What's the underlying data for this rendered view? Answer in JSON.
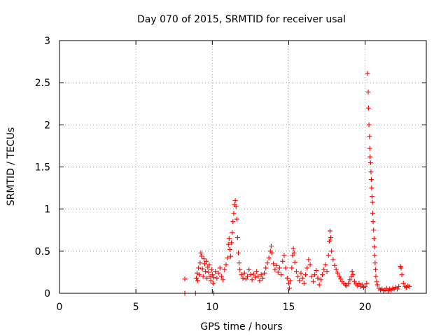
{
  "chart_data": {
    "type": "scatter",
    "title": "Day 070 of 2015, SRMTID for receiver usal",
    "xlabel": "GPS time / hours",
    "ylabel": "SRMTID / TECUs",
    "xlim": [
      0,
      24
    ],
    "ylim": [
      0,
      3
    ],
    "xticks": [
      0,
      5,
      10,
      15,
      20
    ],
    "xtick_labels": [
      "0",
      "5",
      "10",
      "15",
      "20"
    ],
    "yticks": [
      0,
      0.5,
      1,
      1.5,
      2,
      2.5,
      3
    ],
    "ytick_labels": [
      "0",
      "0.5",
      "1",
      "1.5",
      "2",
      "2.5",
      "3"
    ],
    "grid": true,
    "marker": "+",
    "color": "#ff0000",
    "series": [
      {
        "name": "SRMTID",
        "points": [
          [
            8.2,
            0.17
          ],
          [
            8.2,
            0.0
          ],
          [
            8.9,
            0.0
          ],
          [
            10.1,
            0.0
          ],
          [
            8.95,
            0.18
          ],
          [
            9.0,
            0.24
          ],
          [
            9.05,
            0.15
          ],
          [
            9.1,
            0.3
          ],
          [
            9.15,
            0.22
          ],
          [
            9.2,
            0.36
          ],
          [
            9.25,
            0.48
          ],
          [
            9.3,
            0.44
          ],
          [
            9.35,
            0.29
          ],
          [
            9.4,
            0.2
          ],
          [
            9.45,
            0.41
          ],
          [
            9.5,
            0.35
          ],
          [
            9.55,
            0.26
          ],
          [
            9.6,
            0.38
          ],
          [
            9.65,
            0.18
          ],
          [
            9.7,
            0.31
          ],
          [
            9.75,
            0.25
          ],
          [
            9.8,
            0.34
          ],
          [
            9.85,
            0.2
          ],
          [
            9.9,
            0.15
          ],
          [
            9.95,
            0.28
          ],
          [
            10.0,
            0.22
          ],
          [
            10.05,
            0.12
          ],
          [
            10.1,
            0.19
          ],
          [
            10.2,
            0.26
          ],
          [
            10.3,
            0.18
          ],
          [
            10.4,
            0.24
          ],
          [
            10.5,
            0.3
          ],
          [
            10.6,
            0.2
          ],
          [
            10.7,
            0.16
          ],
          [
            10.8,
            0.28
          ],
          [
            10.9,
            0.34
          ],
          [
            11.0,
            0.42
          ],
          [
            11.05,
            0.58
          ],
          [
            11.1,
            0.65
          ],
          [
            11.15,
            0.52
          ],
          [
            11.2,
            0.44
          ],
          [
            11.25,
            0.6
          ],
          [
            11.3,
            0.72
          ],
          [
            11.35,
            0.85
          ],
          [
            11.4,
            0.95
          ],
          [
            11.45,
            1.05
          ],
          [
            11.5,
            1.1
          ],
          [
            11.55,
            1.03
          ],
          [
            11.6,
            0.88
          ],
          [
            11.65,
            0.66
          ],
          [
            11.7,
            0.48
          ],
          [
            11.75,
            0.36
          ],
          [
            11.8,
            0.28
          ],
          [
            11.9,
            0.22
          ],
          [
            12.0,
            0.18
          ],
          [
            12.1,
            0.24
          ],
          [
            12.2,
            0.17
          ],
          [
            12.3,
            0.2
          ],
          [
            12.4,
            0.28
          ],
          [
            12.5,
            0.22
          ],
          [
            12.6,
            0.16
          ],
          [
            12.7,
            0.23
          ],
          [
            12.8,
            0.19
          ],
          [
            12.9,
            0.26
          ],
          [
            13.0,
            0.2
          ],
          [
            13.1,
            0.15
          ],
          [
            13.2,
            0.22
          ],
          [
            13.3,
            0.18
          ],
          [
            13.4,
            0.24
          ],
          [
            13.5,
            0.3
          ],
          [
            13.6,
            0.36
          ],
          [
            13.7,
            0.42
          ],
          [
            13.8,
            0.5
          ],
          [
            13.85,
            0.56
          ],
          [
            13.9,
            0.48
          ],
          [
            14.0,
            0.35
          ],
          [
            14.1,
            0.28
          ],
          [
            14.2,
            0.33
          ],
          [
            14.3,
            0.25
          ],
          [
            14.4,
            0.3
          ],
          [
            14.5,
            0.22
          ],
          [
            14.6,
            0.38
          ],
          [
            14.7,
            0.45
          ],
          [
            14.8,
            0.3
          ],
          [
            14.9,
            0.18
          ],
          [
            15.0,
            0.12
          ],
          [
            15.05,
            0.06
          ],
          [
            15.1,
            0.15
          ],
          [
            15.2,
            0.3
          ],
          [
            15.25,
            0.45
          ],
          [
            15.3,
            0.53
          ],
          [
            15.35,
            0.48
          ],
          [
            15.4,
            0.37
          ],
          [
            15.5,
            0.26
          ],
          [
            15.6,
            0.2
          ],
          [
            15.7,
            0.15
          ],
          [
            15.8,
            0.24
          ],
          [
            15.9,
            0.18
          ],
          [
            16.0,
            0.12
          ],
          [
            16.1,
            0.22
          ],
          [
            16.2,
            0.3
          ],
          [
            16.3,
            0.4
          ],
          [
            16.4,
            0.34
          ],
          [
            16.5,
            0.2
          ],
          [
            16.6,
            0.14
          ],
          [
            16.7,
            0.22
          ],
          [
            16.8,
            0.27
          ],
          [
            16.9,
            0.18
          ],
          [
            17.0,
            0.1
          ],
          [
            17.1,
            0.16
          ],
          [
            17.2,
            0.22
          ],
          [
            17.3,
            0.28
          ],
          [
            17.4,
            0.34
          ],
          [
            17.5,
            0.26
          ],
          [
            17.6,
            0.45
          ],
          [
            17.65,
            0.62
          ],
          [
            17.7,
            0.74
          ],
          [
            17.75,
            0.66
          ],
          [
            17.8,
            0.5
          ],
          [
            17.9,
            0.4
          ],
          [
            18.0,
            0.33
          ],
          [
            18.1,
            0.28
          ],
          [
            18.2,
            0.24
          ],
          [
            18.3,
            0.2
          ],
          [
            18.4,
            0.17
          ],
          [
            18.5,
            0.14
          ],
          [
            18.6,
            0.12
          ],
          [
            18.7,
            0.1
          ],
          [
            18.8,
            0.09
          ],
          [
            18.9,
            0.12
          ],
          [
            19.0,
            0.16
          ],
          [
            19.1,
            0.2
          ],
          [
            19.15,
            0.26
          ],
          [
            19.2,
            0.22
          ],
          [
            19.3,
            0.14
          ],
          [
            19.4,
            0.11
          ],
          [
            19.5,
            0.09
          ],
          [
            19.6,
            0.12
          ],
          [
            19.7,
            0.08
          ],
          [
            19.8,
            0.1
          ],
          [
            19.9,
            0.07
          ],
          [
            20.0,
            0.08
          ],
          [
            20.1,
            0.12
          ],
          [
            20.15,
            2.61
          ],
          [
            20.2,
            2.39
          ],
          [
            20.22,
            2.2
          ],
          [
            20.25,
            2.0
          ],
          [
            20.28,
            1.86
          ],
          [
            20.3,
            1.72
          ],
          [
            20.32,
            1.62
          ],
          [
            20.35,
            1.55
          ],
          [
            20.38,
            1.44
          ],
          [
            20.4,
            1.35
          ],
          [
            20.42,
            1.25
          ],
          [
            20.45,
            1.15
          ],
          [
            20.48,
            1.08
          ],
          [
            20.5,
            0.95
          ],
          [
            20.52,
            0.85
          ],
          [
            20.55,
            0.75
          ],
          [
            20.58,
            0.65
          ],
          [
            20.6,
            0.55
          ],
          [
            20.62,
            0.45
          ],
          [
            20.65,
            0.36
          ],
          [
            20.68,
            0.28
          ],
          [
            20.7,
            0.2
          ],
          [
            20.75,
            0.14
          ],
          [
            20.8,
            0.1
          ],
          [
            20.9,
            0.06
          ],
          [
            21.0,
            0.04
          ],
          [
            21.1,
            0.05
          ],
          [
            21.2,
            0.03
          ],
          [
            21.3,
            0.04
          ],
          [
            21.4,
            0.06
          ],
          [
            21.5,
            0.03
          ],
          [
            21.6,
            0.05
          ],
          [
            21.7,
            0.04
          ],
          [
            21.8,
            0.06
          ],
          [
            21.9,
            0.05
          ],
          [
            22.0,
            0.07
          ],
          [
            22.1,
            0.05
          ],
          [
            22.2,
            0.08
          ],
          [
            22.3,
            0.32
          ],
          [
            22.35,
            0.3
          ],
          [
            22.4,
            0.22
          ],
          [
            22.5,
            0.12
          ],
          [
            22.6,
            0.08
          ],
          [
            22.7,
            0.07
          ],
          [
            22.8,
            0.09
          ],
          [
            22.9,
            0.08
          ]
        ]
      }
    ]
  }
}
